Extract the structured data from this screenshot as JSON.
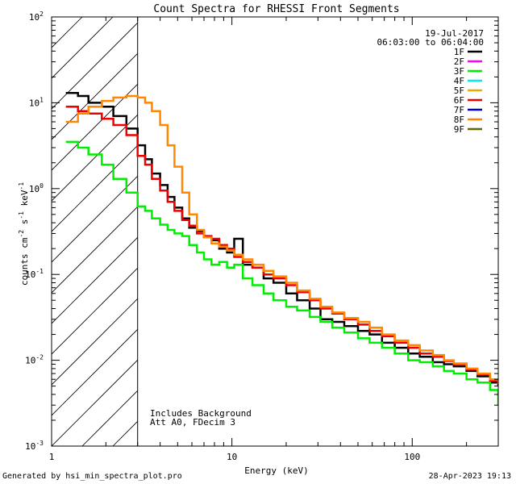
{
  "chart_data": {
    "type": "line",
    "title": "Count Spectra for RHESSI Front Segments",
    "xlabel": "Energy (keV)",
    "ylabel": "counts cm",
    "ylabel_sup1": "-2",
    "ylabel_mid": " s",
    "ylabel_sup2": "-1",
    "ylabel_end": " keV",
    "ylabel_sup3": "-1",
    "x_scale": "log",
    "y_scale": "log",
    "xlim": [
      1,
      300
    ],
    "ylim": [
      0.001,
      100
    ],
    "x_ticks": [
      {
        "value": 1,
        "label": "1"
      },
      {
        "value": 10,
        "label": "10"
      },
      {
        "value": 100,
        "label": "100"
      }
    ],
    "y_ticks": [
      {
        "value": 0.001,
        "base": "10",
        "exp": "-3"
      },
      {
        "value": 0.01,
        "base": "10",
        "exp": "-2"
      },
      {
        "value": 0.1,
        "base": "10",
        "exp": "-1"
      },
      {
        "value": 1,
        "base": "10",
        "exp": "0"
      },
      {
        "value": 10,
        "base": "10",
        "exp": "1"
      },
      {
        "value": 100,
        "base": "10",
        "exp": "2"
      }
    ],
    "date": "19-Jul-2017",
    "time_range": "06:03:00 to 06:04:00",
    "legend": [
      {
        "label": "1F",
        "color": "#000000"
      },
      {
        "label": "2F",
        "color": "#ff00ff"
      },
      {
        "label": "3F",
        "color": "#00ee00"
      },
      {
        "label": "4F",
        "color": "#00eeee"
      },
      {
        "label": "5F",
        "color": "#eeaa00"
      },
      {
        "label": "6F",
        "color": "#ee0000"
      },
      {
        "label": "7F",
        "color": "#0000cc"
      },
      {
        "label": "8F",
        "color": "#ff8800"
      },
      {
        "label": "9F",
        "color": "#666600"
      }
    ],
    "annotations": [
      "Includes Background",
      "Att A0, FDecim 3"
    ],
    "shaded_region": {
      "x_from": 1,
      "x_to": 3,
      "pattern": "diagonal hatch"
    },
    "series": [
      {
        "name": "1F",
        "color": "#000000",
        "points": [
          [
            1.2,
            13
          ],
          [
            1.4,
            12
          ],
          [
            1.6,
            10
          ],
          [
            1.9,
            9
          ],
          [
            2.2,
            7
          ],
          [
            2.6,
            5
          ],
          [
            3.0,
            3.2
          ],
          [
            3.3,
            2.2
          ],
          [
            3.6,
            1.5
          ],
          [
            4.0,
            1.1
          ],
          [
            4.4,
            0.8
          ],
          [
            4.8,
            0.6
          ],
          [
            5.3,
            0.45
          ],
          [
            5.8,
            0.35
          ],
          [
            6.4,
            0.32
          ],
          [
            7.0,
            0.27
          ],
          [
            7.7,
            0.25
          ],
          [
            8.5,
            0.2
          ],
          [
            9.4,
            0.18
          ],
          [
            10.3,
            0.26
          ],
          [
            11.5,
            0.13
          ],
          [
            13.0,
            0.12
          ],
          [
            15.0,
            0.09
          ],
          [
            17.0,
            0.08
          ],
          [
            20.0,
            0.06
          ],
          [
            23.0,
            0.05
          ],
          [
            27.0,
            0.04
          ],
          [
            31.0,
            0.03
          ],
          [
            36.0,
            0.028
          ],
          [
            42.0,
            0.025
          ],
          [
            50.0,
            0.022
          ],
          [
            58.0,
            0.02
          ],
          [
            68.0,
            0.016
          ],
          [
            80.0,
            0.014
          ],
          [
            95.0,
            0.012
          ],
          [
            110.0,
            0.011
          ],
          [
            130.0,
            0.0095
          ],
          [
            150.0,
            0.009
          ],
          [
            170.0,
            0.0085
          ],
          [
            200.0,
            0.0075
          ],
          [
            230.0,
            0.0065
          ],
          [
            270.0,
            0.0055
          ],
          [
            300.0,
            0.005
          ]
        ]
      },
      {
        "name": "3F",
        "color": "#00ee00",
        "points": [
          [
            1.2,
            3.5
          ],
          [
            1.4,
            3.0
          ],
          [
            1.6,
            2.5
          ],
          [
            1.9,
            1.9
          ],
          [
            2.2,
            1.3
          ],
          [
            2.6,
            0.9
          ],
          [
            3.0,
            0.62
          ],
          [
            3.3,
            0.55
          ],
          [
            3.6,
            0.45
          ],
          [
            4.0,
            0.38
          ],
          [
            4.4,
            0.33
          ],
          [
            4.8,
            0.3
          ],
          [
            5.3,
            0.28
          ],
          [
            5.8,
            0.22
          ],
          [
            6.4,
            0.18
          ],
          [
            7.0,
            0.15
          ],
          [
            7.7,
            0.13
          ],
          [
            8.5,
            0.14
          ],
          [
            9.4,
            0.12
          ],
          [
            10.3,
            0.13
          ],
          [
            11.5,
            0.09
          ],
          [
            13.0,
            0.075
          ],
          [
            15.0,
            0.06
          ],
          [
            17.0,
            0.05
          ],
          [
            20.0,
            0.042
          ],
          [
            23.0,
            0.038
          ],
          [
            27.0,
            0.032
          ],
          [
            31.0,
            0.028
          ],
          [
            36.0,
            0.024
          ],
          [
            42.0,
            0.021
          ],
          [
            50.0,
            0.018
          ],
          [
            58.0,
            0.016
          ],
          [
            68.0,
            0.014
          ],
          [
            80.0,
            0.012
          ],
          [
            95.0,
            0.01
          ],
          [
            110.0,
            0.0095
          ],
          [
            130.0,
            0.0085
          ],
          [
            150.0,
            0.0075
          ],
          [
            170.0,
            0.007
          ],
          [
            200.0,
            0.006
          ],
          [
            230.0,
            0.0055
          ],
          [
            270.0,
            0.0045
          ],
          [
            300.0,
            0.003
          ]
        ]
      },
      {
        "name": "6F",
        "color": "#ee0000",
        "points": [
          [
            1.2,
            9
          ],
          [
            1.4,
            8
          ],
          [
            1.6,
            7.5
          ],
          [
            1.9,
            6.5
          ],
          [
            2.2,
            5.5
          ],
          [
            2.6,
            4.2
          ],
          [
            3.0,
            2.4
          ],
          [
            3.3,
            1.9
          ],
          [
            3.6,
            1.3
          ],
          [
            4.0,
            0.95
          ],
          [
            4.4,
            0.7
          ],
          [
            4.8,
            0.55
          ],
          [
            5.3,
            0.43
          ],
          [
            5.8,
            0.37
          ],
          [
            6.4,
            0.3
          ],
          [
            7.0,
            0.28
          ],
          [
            7.7,
            0.26
          ],
          [
            8.5,
            0.22
          ],
          [
            9.4,
            0.2
          ],
          [
            10.3,
            0.16
          ],
          [
            11.5,
            0.14
          ],
          [
            13.0,
            0.12
          ],
          [
            15.0,
            0.1
          ],
          [
            17.0,
            0.09
          ],
          [
            20.0,
            0.075
          ],
          [
            23.0,
            0.062
          ],
          [
            27.0,
            0.05
          ],
          [
            31.0,
            0.04
          ],
          [
            36.0,
            0.035
          ],
          [
            42.0,
            0.03
          ],
          [
            50.0,
            0.026
          ],
          [
            58.0,
            0.022
          ],
          [
            68.0,
            0.019
          ],
          [
            80.0,
            0.016
          ],
          [
            95.0,
            0.014
          ],
          [
            110.0,
            0.012
          ],
          [
            130.0,
            0.011
          ],
          [
            150.0,
            0.0098
          ],
          [
            170.0,
            0.009
          ],
          [
            200.0,
            0.0078
          ],
          [
            230.0,
            0.0068
          ],
          [
            270.0,
            0.0058
          ],
          [
            300.0,
            0.0052
          ]
        ]
      },
      {
        "name": "8F",
        "color": "#ff8800",
        "points": [
          [
            1.2,
            6
          ],
          [
            1.4,
            7.5
          ],
          [
            1.6,
            9
          ],
          [
            1.9,
            10.5
          ],
          [
            2.2,
            11.5
          ],
          [
            2.6,
            12
          ],
          [
            3.0,
            11.5
          ],
          [
            3.3,
            10
          ],
          [
            3.6,
            8
          ],
          [
            4.0,
            5.5
          ],
          [
            4.4,
            3.2
          ],
          [
            4.8,
            1.8
          ],
          [
            5.3,
            0.9
          ],
          [
            5.8,
            0.5
          ],
          [
            6.4,
            0.33
          ],
          [
            7.0,
            0.27
          ],
          [
            7.7,
            0.23
          ],
          [
            8.5,
            0.21
          ],
          [
            9.4,
            0.19
          ],
          [
            10.3,
            0.17
          ],
          [
            11.5,
            0.15
          ],
          [
            13.0,
            0.13
          ],
          [
            15.0,
            0.11
          ],
          [
            17.0,
            0.095
          ],
          [
            20.0,
            0.08
          ],
          [
            23.0,
            0.065
          ],
          [
            27.0,
            0.052
          ],
          [
            31.0,
            0.042
          ],
          [
            36.0,
            0.036
          ],
          [
            42.0,
            0.031
          ],
          [
            50.0,
            0.028
          ],
          [
            58.0,
            0.024
          ],
          [
            68.0,
            0.02
          ],
          [
            80.0,
            0.017
          ],
          [
            95.0,
            0.015
          ],
          [
            110.0,
            0.013
          ],
          [
            130.0,
            0.0115
          ],
          [
            150.0,
            0.01
          ],
          [
            170.0,
            0.0092
          ],
          [
            200.0,
            0.008
          ],
          [
            230.0,
            0.007
          ],
          [
            270.0,
            0.006
          ],
          [
            300.0,
            0.0053
          ]
        ]
      }
    ]
  },
  "footer": {
    "generated_by": "Generated by hsi_min_spectra_plot.pro",
    "timestamp": "28-Apr-2023 19:13"
  }
}
